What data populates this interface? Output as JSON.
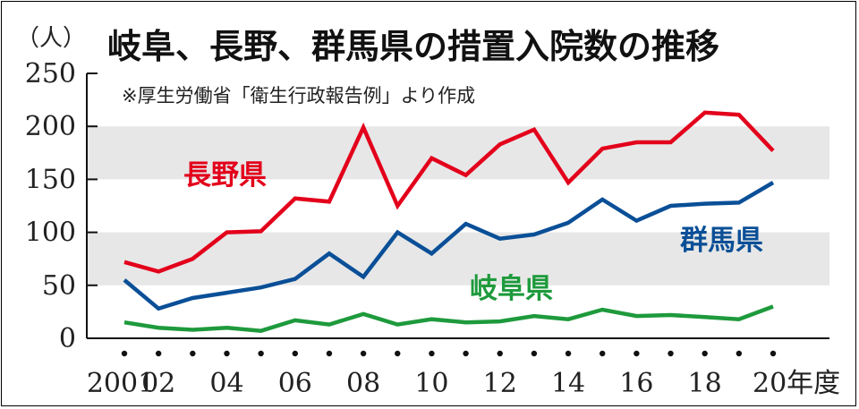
{
  "chart_data": {
    "type": "line",
    "title": "岐阜、長野、群馬県の措置入院数の推移",
    "subtitle": "※厚生労働省「衛生行政報告例」より作成",
    "ylabel": "（人）",
    "xlabel": "",
    "ylim": [
      0,
      250
    ],
    "yticks": [
      0,
      50,
      100,
      150,
      200,
      250
    ],
    "ytick_labels": [
      "0",
      "50",
      "100",
      "150",
      "200",
      "250"
    ],
    "grid": "shaded horizontal bands 50–100 and 150–200",
    "x": [
      2001,
      2002,
      2003,
      2004,
      2005,
      2006,
      2007,
      2008,
      2009,
      2010,
      2011,
      2012,
      2013,
      2014,
      2015,
      2016,
      2017,
      2018,
      2019,
      2020
    ],
    "xtick_labels": [
      {
        "x": 2001,
        "label": "2001"
      },
      {
        "x": 2002,
        "label": "02"
      },
      {
        "x": 2004,
        "label": "04"
      },
      {
        "x": 2006,
        "label": "06"
      },
      {
        "x": 2008,
        "label": "08"
      },
      {
        "x": 2010,
        "label": "10"
      },
      {
        "x": 2012,
        "label": "12"
      },
      {
        "x": 2014,
        "label": "14"
      },
      {
        "x": 2016,
        "label": "16"
      },
      {
        "x": 2018,
        "label": "18"
      },
      {
        "x": 2020,
        "label": "20年度"
      }
    ],
    "series": [
      {
        "name": "長野県",
        "color": "#e3001b",
        "values": [
          72,
          63,
          75,
          100,
          101,
          132,
          129,
          199,
          125,
          170,
          154,
          183,
          197,
          147,
          179,
          185,
          185,
          213,
          211,
          177
        ]
      },
      {
        "name": "群馬県",
        "color": "#0a4f97",
        "values": [
          55,
          28,
          38,
          43,
          48,
          56,
          80,
          58,
          100,
          80,
          108,
          94,
          98,
          109,
          131,
          111,
          125,
          127,
          128,
          147
        ]
      },
      {
        "name": "岐阜県",
        "color": "#1e9a3c",
        "values": [
          15,
          10,
          8,
          10,
          7,
          17,
          13,
          23,
          13,
          18,
          15,
          16,
          21,
          18,
          27,
          21,
          22,
          20,
          18,
          30
        ]
      }
    ]
  }
}
